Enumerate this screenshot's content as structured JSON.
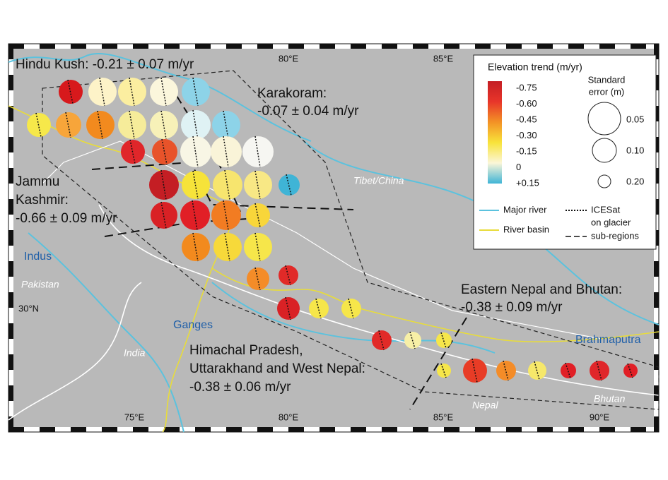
{
  "regions": [
    {
      "lines": [
        "Hindu Kush: -0.21 ± 0.07 m/yr"
      ]
    },
    {
      "lines": [
        "Karakoram:",
        "-0.07 ± 0.04 m/yr"
      ]
    },
    {
      "lines": [
        "Jammu",
        "Kashmir:",
        "-0.66 ± 0.09 m/yr"
      ]
    },
    {
      "lines": [
        "Eastern Nepal and Bhutan:",
        "-0.38 ± 0.09 m/yr"
      ]
    },
    {
      "lines": [
        "Himachal Pradesh,",
        "Uttarakhand and West Nepal:",
        "-0.38 ± 0.06 m/yr"
      ]
    }
  ],
  "top_axis_labels": [
    "80°E",
    "85°E"
  ],
  "bottom_axis_labels": [
    "75°E",
    "80°E",
    "85°E",
    "90°E"
  ],
  "left_axis_labels": [
    "30°N"
  ],
  "countries": [
    "Tibet/China",
    "Pakistan",
    "India",
    "Nepal",
    "Bhutan"
  ],
  "rivers": [
    "Indus",
    "Ganges",
    "Brahmaputra"
  ],
  "legend": {
    "title": "Elevation trend (m/yr)",
    "color_labels": [
      "-0.75",
      "-0.60",
      "-0.45",
      "-0.30",
      "-0.15",
      "0",
      "+0.15"
    ],
    "size_title": [
      "Standard",
      "error (m)"
    ],
    "size_labels": [
      "0.05",
      "0.10",
      "0.20"
    ],
    "major_river": "Major river",
    "river_basin": "River basin",
    "icesat": [
      "ICESat",
      "on glacier"
    ],
    "sub_regions": "sub-regions"
  }
}
